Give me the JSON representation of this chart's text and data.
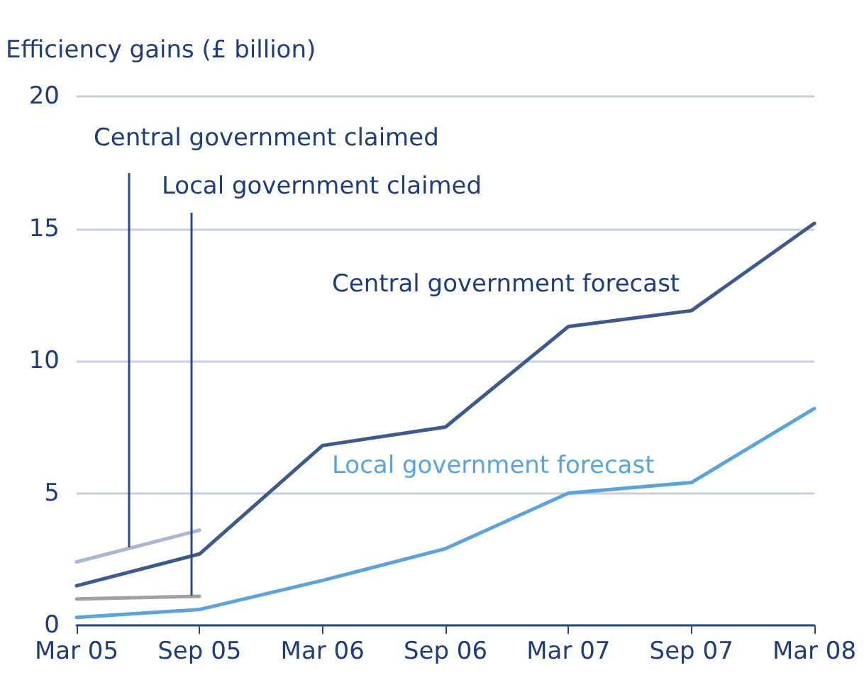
{
  "chart_data": {
    "type": "line",
    "ylabel": "Efficiency gains (£ billion)",
    "categories": [
      "Mar 05",
      "Sep 05",
      "Mar 06",
      "Sep 06",
      "Mar 07",
      "Sep 07",
      "Mar 08"
    ],
    "series": [
      {
        "name": "Central government forecast",
        "color": "#3d5a8e",
        "values": [
          1.5,
          2.7,
          6.8,
          7.5,
          11.3,
          11.9,
          15.2
        ]
      },
      {
        "name": "Local government forecast",
        "color": "#5ba3dc",
        "values": [
          0.3,
          0.6,
          1.7,
          2.9,
          5.0,
          5.4,
          8.2
        ]
      },
      {
        "name": "Central government claimed",
        "color": "#a9b8d0",
        "values": [
          2.4,
          3.6,
          null,
          null,
          null,
          null,
          null
        ]
      },
      {
        "name": "Local government claimed",
        "color": "#a0a0a0",
        "values": [
          1.0,
          1.1,
          null,
          null,
          null,
          null,
          null
        ]
      }
    ],
    "ylim": [
      0,
      20
    ],
    "yticks": [
      0,
      5,
      10,
      15,
      20
    ],
    "grid": "y",
    "legend": false,
    "marker": "none",
    "line_style": "solid"
  }
}
